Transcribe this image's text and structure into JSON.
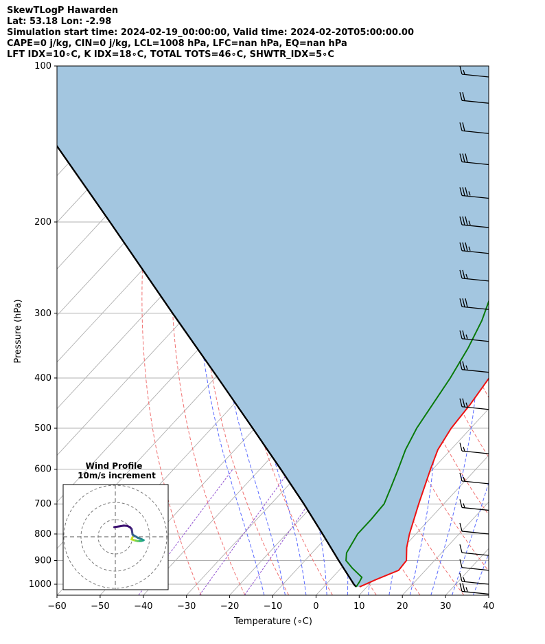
{
  "header": {
    "line1": "SkewTLogP Hawarden",
    "line2": "Lat: 53.18   Lon: -2.98",
    "line3": "Simulation start time: 2024-02-19_00:00:00, Valid time: 2024-02-20T05:00:00.00",
    "line4": "CAPE=0 j/kg, CIN=0 j/kg, LCL=1008 hPa, LFC=nan hPa, EQ=nan hPa",
    "line5": "LFT IDX=10∘C, K IDX=18∘C, TOTAL TOTS=46∘C, SHWTR_IDX=5∘C"
  },
  "inset": {
    "title": "Wind Profile",
    "subtitle": "10m/s increment"
  },
  "colors": {
    "temperature": "#ee1111",
    "dewpoint": "#0a7a0a",
    "parcel": "#000000",
    "cape_fill": "#a3c6e0",
    "dry_adiabat": "#f07070",
    "moist_adiabat": "#5a6aff",
    "isotherm": "#b0b0b0",
    "mixing_ratio": "#9050d0"
  },
  "chart_data": {
    "type": "line",
    "subtype": "skew-t log-p",
    "xlabel": "Temperature (∘C)",
    "ylabel": "Pressure (hPa)",
    "xlim": [
      -60,
      40
    ],
    "ylim": [
      1050,
      100
    ],
    "y_scale": "log",
    "x_ticks": [
      "−60",
      "−50",
      "−40",
      "−30",
      "−20",
      "−10",
      "0",
      "10",
      "20",
      "30",
      "40"
    ],
    "y_ticks": [
      "1000",
      "900",
      "800",
      "700",
      "600",
      "500",
      "400",
      "300",
      "200",
      "100"
    ],
    "grid": true,
    "series": [
      {
        "role": "temperature",
        "points": [
          [
            1012,
            8.3
          ],
          [
            980,
            10.5
          ],
          [
            940,
            13.8
          ],
          [
            900,
            13.5
          ],
          [
            850,
            10.8
          ],
          [
            800,
            8.5
          ],
          [
            700,
            4.2
          ],
          [
            600,
            -0.5
          ],
          [
            550,
            -3.0
          ],
          [
            500,
            -4.5
          ],
          [
            450,
            -5.2
          ],
          [
            400,
            -6.5
          ],
          [
            370,
            -7.3
          ],
          [
            340,
            -8.5
          ],
          [
            320,
            -9.8
          ],
          [
            300,
            -11.5
          ],
          [
            270,
            -15.0
          ],
          [
            230,
            -20.5
          ],
          [
            210,
            -24.5
          ],
          [
            195,
            -26.0
          ],
          [
            180,
            -24.0
          ],
          [
            160,
            -21.5
          ],
          [
            148,
            -19.5
          ],
          [
            130,
            -14.0
          ],
          [
            115,
            -11.0
          ],
          [
            100,
            -8.5
          ]
        ]
      },
      {
        "role": "dewpoint",
        "points": [
          [
            1012,
            7.5
          ],
          [
            990,
            7.2
          ],
          [
            970,
            6.8
          ],
          [
            930,
            2.5
          ],
          [
            900,
            -0.5
          ],
          [
            870,
            -2.0
          ],
          [
            800,
            -3.5
          ],
          [
            750,
            -3.5
          ],
          [
            700,
            -3.8
          ],
          [
            650,
            -5.8
          ],
          [
            600,
            -8.0
          ],
          [
            550,
            -10.5
          ],
          [
            500,
            -12.5
          ],
          [
            400,
            -15.5
          ],
          [
            350,
            -17.8
          ],
          [
            310,
            -20.5
          ],
          [
            280,
            -23.5
          ],
          [
            240,
            -28.5
          ],
          [
            200,
            -34.5
          ],
          [
            190,
            -36.5
          ],
          [
            175,
            -37.0
          ],
          [
            165,
            -38.5
          ],
          [
            155,
            -39.0
          ],
          [
            140,
            -39.5
          ],
          [
            125,
            -43.0
          ],
          [
            115,
            -46.0
          ],
          [
            100,
            -52.0
          ]
        ]
      },
      {
        "role": "parcel",
        "points": [
          [
            1012,
            7.5
          ],
          [
            1000,
            6.4
          ],
          [
            900,
            -2.2
          ],
          [
            800,
            -11.6
          ],
          [
            700,
            -22.4
          ],
          [
            600,
            -35.2
          ],
          [
            500,
            -50.5
          ],
          [
            400,
            -69.3
          ],
          [
            300,
            -93.7
          ],
          [
            200,
            -127.8
          ],
          [
            100,
            -186.5
          ]
        ]
      }
    ],
    "wind_barbs": [
      {
        "pressure": 1045,
        "speed_kt": 25
      },
      {
        "pressure": 1000,
        "speed_kt": 15
      },
      {
        "pressure": 940,
        "speed_kt": 10
      },
      {
        "pressure": 880,
        "speed_kt": 10
      },
      {
        "pressure": 800,
        "speed_kt": 10
      },
      {
        "pressure": 720,
        "speed_kt": 15
      },
      {
        "pressure": 640,
        "speed_kt": 15
      },
      {
        "pressure": 560,
        "speed_kt": 15
      },
      {
        "pressure": 460,
        "speed_kt": 25
      },
      {
        "pressure": 390,
        "speed_kt": 25
      },
      {
        "pressure": 340,
        "speed_kt": 25
      },
      {
        "pressure": 295,
        "speed_kt": 30
      },
      {
        "pressure": 260,
        "speed_kt": 25
      },
      {
        "pressure": 230,
        "speed_kt": 35
      },
      {
        "pressure": 205,
        "speed_kt": 35
      },
      {
        "pressure": 180,
        "speed_kt": 35
      },
      {
        "pressure": 155,
        "speed_kt": 30
      },
      {
        "pressure": 135,
        "speed_kt": 20
      },
      {
        "pressure": 118,
        "speed_kt": 20
      },
      {
        "pressure": 105,
        "speed_kt": 15
      }
    ],
    "hodograph": {
      "title": "Wind Profile",
      "subtitle": "10m/s increment",
      "ring_step_ms": 10,
      "points_ms": [
        [
          -0.6,
          5.6
        ],
        [
          2,
          6
        ],
        [
          5,
          6.5
        ],
        [
          7,
          6.3
        ],
        [
          8.5,
          5.6
        ],
        [
          9.5,
          4.5
        ],
        [
          9.8,
          3
        ],
        [
          10,
          1.5
        ],
        [
          10.5,
          1
        ],
        [
          13,
          -0.5
        ],
        [
          15.5,
          -1.5
        ],
        [
          16.5,
          -2
        ],
        [
          15,
          -2.5
        ],
        [
          13,
          -2.5
        ],
        [
          11,
          -2
        ],
        [
          9.5,
          -1.5
        ],
        [
          10,
          -0.3
        ]
      ]
    }
  }
}
